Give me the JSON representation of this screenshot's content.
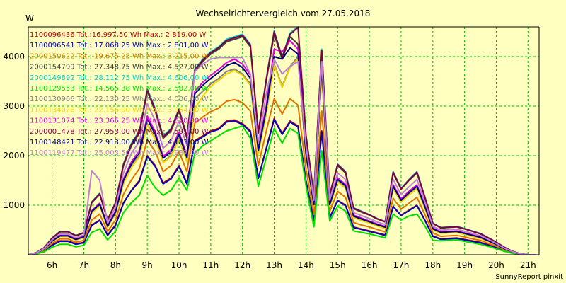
{
  "chart_data": {
    "type": "line",
    "title": "Wechselrichtervergleich vom 27.05.2018",
    "ylabel": "W",
    "xlabel": "",
    "footer": "SunnyReport pinxit",
    "ylim": [
      0,
      4600
    ],
    "xlim": [
      5.25,
      21.35
    ],
    "grid": true,
    "legend_position": "top-left",
    "x_ticks": [
      6,
      7,
      8,
      9,
      10,
      11,
      12,
      13,
      14,
      15,
      16,
      17,
      18,
      19,
      20,
      21
    ],
    "x_tick_labels": [
      "6h",
      "7h",
      "8h",
      "9h",
      "10h",
      "11h",
      "12h",
      "13h",
      "14h",
      "15h",
      "16h",
      "17h",
      "18h",
      "19h",
      "20h",
      "21h"
    ],
    "y_ticks": [
      1000,
      2000,
      3000,
      4000
    ],
    "y_tick_labels": [
      "1000",
      "2000",
      "3000",
      "4000"
    ],
    "x": [
      5.25,
      5.5,
      5.75,
      6.0,
      6.25,
      6.5,
      6.75,
      7.0,
      7.25,
      7.5,
      7.75,
      8.0,
      8.25,
      8.5,
      8.75,
      9.0,
      9.25,
      9.5,
      9.75,
      10.0,
      10.25,
      10.5,
      10.75,
      11.0,
      11.25,
      11.5,
      11.75,
      12.0,
      12.25,
      12.5,
      12.75,
      13.0,
      13.25,
      13.5,
      13.75,
      14.0,
      14.25,
      14.5,
      14.75,
      15.0,
      15.25,
      15.5,
      15.75,
      16.0,
      16.25,
      16.5,
      16.75,
      17.0,
      17.25,
      17.5,
      17.75,
      18.0,
      18.25,
      18.5,
      18.75,
      19.0,
      19.25,
      19.5,
      19.75,
      20.0,
      20.25,
      20.5,
      20.75,
      21.0,
      21.25
    ],
    "series": [
      {
        "name": "1100096436 Tot.:16.997,50 Wh Max.: 2.819,00 W",
        "color": "#c00000",
        "values": [
          0,
          20,
          80,
          200,
          280,
          280,
          220,
          250,
          600,
          700,
          400,
          600,
          1050,
          1300,
          1500,
          2000,
          1800,
          1450,
          1550,
          1800,
          1450,
          2300,
          2400,
          2500,
          2550,
          2700,
          2720,
          2650,
          2500,
          1550,
          2150,
          2750,
          2450,
          2700,
          2600,
          1500,
          700,
          2500,
          750,
          1100,
          1000,
          560,
          520,
          480,
          440,
          400,
          980,
          800,
          900,
          1000,
          700,
          380,
          320,
          330,
          340,
          310,
          280,
          250,
          200,
          150,
          90,
          40,
          10,
          0,
          0
        ]
      },
      {
        "name": "1100096541 Tot.: 17.068,25 Wh Max.: 2.801,00 W",
        "color": "#0000c0",
        "values": [
          0,
          20,
          80,
          190,
          270,
          270,
          210,
          240,
          590,
          690,
          390,
          590,
          1040,
          1290,
          1480,
          1980,
          1780,
          1430,
          1530,
          1780,
          1430,
          2280,
          2380,
          2480,
          2530,
          2680,
          2700,
          2630,
          2480,
          1540,
          2130,
          2730,
          2430,
          2680,
          2580,
          1490,
          690,
          2480,
          740,
          1090,
          990,
          550,
          510,
          470,
          430,
          390,
          970,
          790,
          890,
          990,
          690,
          370,
          310,
          320,
          330,
          300,
          270,
          240,
          190,
          140,
          85,
          38,
          9,
          0,
          0
        ]
      },
      {
        "name": "2000150622 Tot.: 19.675,25 Wh Max.: 3.215,00 W",
        "color": "#e07000",
        "values": [
          0,
          25,
          95,
          230,
          320,
          320,
          250,
          290,
          700,
          820,
          470,
          700,
          1220,
          1510,
          1740,
          2320,
          2080,
          1680,
          1800,
          2080,
          1680,
          2660,
          2780,
          2890,
          2960,
          3100,
          3130,
          3070,
          2900,
          1800,
          2490,
          3150,
          2840,
          3150,
          3020,
          1740,
          810,
          2900,
          870,
          1280,
          1160,
          650,
          600,
          560,
          510,
          460,
          1140,
          920,
          1040,
          1160,
          810,
          440,
          370,
          380,
          390,
          360,
          320,
          290,
          230,
          170,
          100,
          45,
          12,
          0,
          0
        ]
      },
      {
        "name": "2000154799 Tot.: 27.348,75 Wh Max.: 4.527,00 W",
        "color": "#404040",
        "values": [
          0,
          40,
          140,
          330,
          460,
          460,
          380,
          440,
          1050,
          1220,
          700,
          1040,
          1800,
          2200,
          2450,
          3300,
          2900,
          2350,
          2500,
          2900,
          2350,
          3700,
          3900,
          4050,
          4150,
          4300,
          4350,
          4400,
          4200,
          2450,
          3500,
          4450,
          3950,
          4400,
          4250,
          2400,
          1200,
          4100,
          1200,
          1800,
          1650,
          930,
          860,
          800,
          720,
          660,
          1650,
          1320,
          1500,
          1650,
          1150,
          630,
          540,
          550,
          560,
          520,
          470,
          420,
          340,
          250,
          150,
          70,
          20,
          0,
          0
        ]
      },
      {
        "name": "2000149892 Tot.: 28.112,75 Wh Max.: 4.606,00 W",
        "color": "#00d0d0",
        "values": [
          0,
          42,
          145,
          340,
          470,
          470,
          390,
          450,
          1070,
          1240,
          710,
          1060,
          1840,
          2250,
          2500,
          3350,
          2950,
          2400,
          2550,
          2950,
          2400,
          3750,
          3950,
          4100,
          4200,
          4350,
          4400,
          4450,
          4250,
          2480,
          3550,
          4520,
          4000,
          4480,
          4600,
          2430,
          1220,
          4150,
          1220,
          1830,
          1680,
          950,
          880,
          810,
          730,
          670,
          1680,
          1340,
          1520,
          1680,
          1170,
          640,
          550,
          560,
          570,
          530,
          480,
          430,
          345,
          255,
          155,
          72,
          21,
          0,
          0
        ]
      },
      {
        "name": "1100129553 Tot.: 14.565,38 Wh Max.: 2.582,00 W",
        "color": "#00e000",
        "values": [
          0,
          15,
          60,
          150,
          210,
          210,
          160,
          190,
          450,
          520,
          300,
          470,
          850,
          1050,
          1200,
          1600,
          1350,
          1200,
          1300,
          1550,
          1300,
          2050,
          2200,
          2300,
          2400,
          2500,
          2550,
          2600,
          2350,
          1380,
          1950,
          2550,
          2250,
          2550,
          2450,
          1400,
          560,
          2100,
          680,
          980,
          880,
          480,
          450,
          420,
          380,
          340,
          820,
          700,
          780,
          820,
          580,
          290,
          280,
          290,
          300,
          270,
          240,
          210,
          170,
          120,
          70,
          30,
          8,
          0,
          0
        ]
      },
      {
        "name": "1100130966 Tot.: 22.130,25 Wh Max.: 4.006,00 W",
        "color": "#808080",
        "values": [
          0,
          32,
          112,
          265,
          370,
          370,
          300,
          350,
          850,
          990,
          560,
          840,
          1450,
          1780,
          2000,
          2650,
          2350,
          1880,
          2000,
          2350,
          1900,
          3150,
          3300,
          3450,
          3560,
          3700,
          3750,
          3650,
          3450,
          2050,
          2850,
          3850,
          3400,
          3800,
          4000,
          2000,
          980,
          3650,
          980,
          1480,
          1350,
          760,
          700,
          650,
          590,
          540,
          1340,
          1070,
          1220,
          1340,
          940,
          510,
          440,
          450,
          460,
          420,
          380,
          340,
          275,
          200,
          120,
          56,
          16,
          0,
          0
        ]
      },
      {
        "name": "1100134026 Tot.: 22.156,00 Wh Max.: 3.964,00 W",
        "color": "#f0d000",
        "values": [
          0,
          30,
          110,
          260,
          365,
          365,
          295,
          345,
          840,
          980,
          550,
          830,
          1430,
          1760,
          1980,
          2620,
          2330,
          1860,
          1980,
          2330,
          1880,
          2950,
          3200,
          3400,
          3520,
          3650,
          3720,
          3620,
          3420,
          2030,
          2830,
          3820,
          3380,
          3780,
          3960,
          1980,
          970,
          3620,
          970,
          1470,
          1340,
          750,
          690,
          640,
          580,
          530,
          1330,
          1060,
          1210,
          1330,
          930,
          500,
          430,
          440,
          450,
          410,
          370,
          330,
          270,
          195,
          118,
          55,
          15,
          0,
          0
        ]
      },
      {
        "name": "1100131074 Tot.: 23.365,25 Wh Max.: 4.320,00 W",
        "color": "#e000e0",
        "values": [
          0,
          34,
          118,
          280,
          390,
          390,
          315,
          370,
          890,
          1040,
          590,
          880,
          1530,
          1870,
          2100,
          2800,
          2480,
          1990,
          2120,
          2480,
          2000,
          3300,
          3480,
          3620,
          3740,
          3880,
          3950,
          3850,
          3630,
          2150,
          3000,
          4150,
          4100,
          4320,
          4150,
          2100,
          1030,
          3850,
          1030,
          1550,
          1420,
          800,
          740,
          680,
          620,
          570,
          1410,
          1130,
          1280,
          1410,
          990,
          540,
          460,
          470,
          480,
          440,
          400,
          360,
          290,
          210,
          125,
          58,
          17,
          0,
          0
        ]
      },
      {
        "name": "2000001478 Tot.: 27.953,00 Wh Max.: 4.591,00 W",
        "color": "#800040",
        "values": [
          0,
          41,
          143,
          335,
          465,
          465,
          385,
          445,
          1060,
          1230,
          705,
          1050,
          1820,
          2230,
          2480,
          3330,
          2930,
          2380,
          2530,
          2930,
          2380,
          3730,
          3930,
          4080,
          4180,
          4330,
          4380,
          4430,
          4230,
          2470,
          3530,
          4500,
          3980,
          4450,
          4590,
          2420,
          1210,
          4120,
          1210,
          1820,
          1670,
          940,
          870,
          805,
          725,
          665,
          1665,
          1330,
          1510,
          1665,
          1160,
          635,
          545,
          555,
          565,
          525,
          475,
          425,
          342,
          252,
          152,
          71,
          20,
          0,
          0
        ]
      },
      {
        "name": "1100148421 Tot.: 22.913,00 Wh Max.: 4.183,00 W",
        "color": "#000080",
        "values": [
          0,
          33,
          115,
          275,
          380,
          380,
          308,
          360,
          870,
          1020,
          575,
          860,
          1500,
          1830,
          2060,
          2740,
          2430,
          1950,
          2080,
          2430,
          1960,
          3250,
          3420,
          3560,
          3680,
          3820,
          3880,
          3780,
          3560,
          2100,
          2930,
          4000,
          3950,
          4180,
          4050,
          2050,
          1010,
          3780,
          1010,
          1520,
          1390,
          780,
          720,
          665,
          605,
          555,
          1380,
          1100,
          1250,
          1380,
          970,
          525,
          450,
          460,
          470,
          430,
          390,
          350,
          282,
          205,
          122,
          57,
          16,
          0,
          0
        ]
      },
      {
        "name": "1100119477 Tot.: 25.003,50 Wh Max.: 3.987,00 W",
        "color": "#c080d0",
        "values": [
          0,
          36,
          125,
          300,
          420,
          420,
          340,
          400,
          1700,
          1500,
          640,
          960,
          1650,
          2050,
          2280,
          3050,
          2700,
          2150,
          2300,
          2700,
          2200,
          3700,
          3850,
          3950,
          3980,
          3980,
          3980,
          3980,
          3650,
          2250,
          3250,
          3950,
          3650,
          3800,
          3900,
          2200,
          1100,
          3900,
          1100,
          1650,
          1520,
          850,
          790,
          730,
          660,
          610,
          1520,
          1210,
          1370,
          1520,
          1060,
          575,
          495,
          505,
          515,
          475,
          430,
          385,
          310,
          225,
          135,
          63,
          18,
          0,
          0
        ]
      }
    ]
  }
}
